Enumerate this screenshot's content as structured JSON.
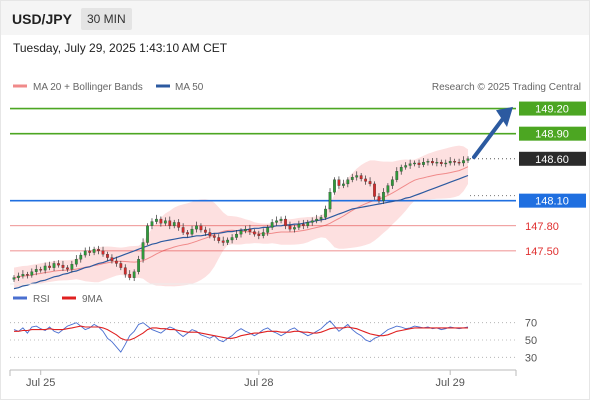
{
  "header": {
    "symbol": "USD/JPY",
    "timeframe": "30 MIN"
  },
  "datetime": "Tuesday, July 29, 2025 1:43:10 AM CET",
  "legend": {
    "bollinger": {
      "label": "MA 20 + Bollinger Bands",
      "color": "#f08a8a"
    },
    "ma50": {
      "label": "MA 50",
      "color": "#2c5aa0"
    },
    "copyright": "Research © 2025 Trading Central"
  },
  "rsi_legend": {
    "rsi": {
      "label": "RSI",
      "color": "#4a6fd0"
    },
    "ma9": {
      "label": "9MA",
      "color": "#e02020"
    }
  },
  "chart_data": [
    {
      "type": "candlestick",
      "title": "USD/JPY 30 MIN",
      "x_ticks": [
        "Jul 25",
        "Jul 28",
        "Jul 29"
      ],
      "ylim": [
        147.2,
        149.35
      ],
      "last_price": 148.6,
      "levels": [
        {
          "value": 149.2,
          "label": "149.20",
          "kind": "resistance",
          "color": "#4ca622"
        },
        {
          "value": 148.9,
          "label": "148.90",
          "kind": "resistance",
          "color": "#4ca622"
        },
        {
          "value": 148.6,
          "label": "148.60",
          "kind": "last",
          "color": "#2b2b2b"
        },
        {
          "value": 148.1,
          "label": "148.10",
          "kind": "pivot",
          "color": "#1f6fe0"
        },
        {
          "value": 147.8,
          "label": "147.80",
          "kind": "support",
          "color": "#e03030"
        },
        {
          "value": 147.5,
          "label": "147.50",
          "kind": "support",
          "color": "#e03030"
        }
      ],
      "close_series": [
        147.18,
        147.2,
        147.22,
        147.21,
        147.25,
        147.28,
        147.27,
        147.32,
        147.3,
        147.35,
        147.33,
        147.3,
        147.28,
        147.34,
        147.4,
        147.45,
        147.5,
        147.48,
        147.52,
        147.5,
        147.46,
        147.42,
        147.38,
        147.35,
        147.3,
        147.22,
        147.18,
        147.25,
        147.4,
        147.6,
        147.8,
        147.85,
        147.88,
        147.83,
        147.86,
        147.8,
        147.84,
        147.78,
        147.72,
        147.7,
        147.76,
        147.8,
        147.75,
        147.72,
        147.68,
        147.66,
        147.62,
        147.6,
        147.63,
        147.66,
        147.7,
        147.74,
        147.76,
        147.73,
        147.7,
        147.68,
        147.72,
        147.78,
        147.84,
        147.86,
        147.88,
        147.8,
        147.76,
        147.78,
        147.82,
        147.8,
        147.84,
        147.86,
        147.88,
        147.9,
        148.0,
        148.2,
        148.35,
        148.28,
        148.3,
        148.35,
        148.38,
        148.4,
        148.36,
        148.33,
        148.3,
        148.15,
        148.1,
        148.2,
        148.28,
        148.35,
        148.45,
        148.5,
        148.52,
        148.54,
        148.55,
        148.53,
        148.56,
        148.57,
        148.55,
        148.56,
        148.54,
        148.55,
        148.57,
        148.56,
        148.55,
        148.58,
        148.6
      ],
      "ma50_series": [
        147.05,
        147.06,
        147.08,
        147.09,
        147.11,
        147.12,
        147.14,
        147.15,
        147.17,
        147.19,
        147.2,
        147.22,
        147.23,
        147.25,
        147.26,
        147.28,
        147.3,
        147.31,
        147.33,
        147.35,
        147.36,
        147.38,
        147.4,
        147.42,
        147.44,
        147.46,
        147.48,
        147.5,
        147.52,
        147.54,
        147.56,
        147.58,
        147.59,
        147.61,
        147.62,
        147.63,
        147.64,
        147.65,
        147.66,
        147.66,
        147.67,
        147.68,
        147.68,
        147.69,
        147.7,
        147.71,
        147.71,
        147.72,
        147.73,
        147.73,
        147.74,
        147.75,
        147.75,
        147.76,
        147.77,
        147.77,
        147.78,
        147.78,
        147.79,
        147.8,
        147.8,
        147.81,
        147.81,
        147.82,
        147.82,
        147.83,
        147.84,
        147.85,
        147.86,
        147.87,
        147.88,
        147.9,
        147.92,
        147.94,
        147.96,
        147.98,
        148.0,
        148.01,
        148.02,
        148.03,
        148.04,
        148.05,
        148.06,
        148.07,
        148.08,
        148.09,
        148.1,
        148.11,
        148.13,
        148.14,
        148.16,
        148.18,
        148.2,
        148.22,
        148.24,
        148.26,
        148.28,
        148.3,
        148.32,
        148.34,
        148.36,
        148.38,
        148.4
      ]
    },
    {
      "type": "line",
      "title": "RSI",
      "ylim": [
        20,
        80
      ],
      "y_ticks": [
        70,
        50,
        30
      ],
      "series": [
        {
          "name": "RSI",
          "color": "#4a6fd0",
          "values": [
            62,
            60,
            64,
            58,
            65,
            66,
            63,
            61,
            65,
            60,
            58,
            62,
            66,
            68,
            70,
            66,
            62,
            64,
            68,
            65,
            60,
            52,
            48,
            42,
            36,
            45,
            55,
            60,
            68,
            70,
            66,
            62,
            60,
            58,
            62,
            65,
            63,
            58,
            54,
            58,
            62,
            60,
            56,
            54,
            52,
            55,
            50,
            48,
            52,
            55,
            60,
            63,
            60,
            58,
            55,
            58,
            62,
            64,
            60,
            58,
            55,
            58,
            62,
            64,
            60,
            58,
            55,
            57,
            60,
            63,
            68,
            72,
            66,
            60,
            64,
            68,
            62,
            58,
            55,
            50,
            48,
            52,
            54,
            58,
            62,
            64,
            66,
            65,
            63,
            64,
            66,
            65,
            64,
            65,
            63,
            64,
            62,
            63,
            65,
            64,
            63,
            64,
            65
          ]
        },
        {
          "name": "9MA",
          "color": "#e02020",
          "values": [
            60,
            60,
            61,
            61,
            62,
            62,
            62,
            62,
            63,
            62,
            62,
            62,
            63,
            64,
            65,
            66,
            65,
            65,
            65,
            65,
            64,
            62,
            59,
            56,
            52,
            50,
            50,
            52,
            55,
            58,
            62,
            64,
            64,
            63,
            63,
            62,
            62,
            61,
            60,
            59,
            59,
            59,
            58,
            57,
            56,
            55,
            54,
            53,
            52,
            52,
            53,
            55,
            56,
            57,
            58,
            58,
            59,
            60,
            60,
            60,
            59,
            59,
            59,
            60,
            60,
            59,
            59,
            58,
            58,
            59,
            61,
            63,
            64,
            64,
            64,
            65,
            64,
            63,
            61,
            59,
            57,
            56,
            55,
            55,
            56,
            58,
            60,
            61,
            62,
            63,
            64,
            64,
            64,
            64,
            64,
            64,
            64,
            64,
            64,
            64,
            64,
            64,
            64
          ]
        }
      ]
    }
  ]
}
